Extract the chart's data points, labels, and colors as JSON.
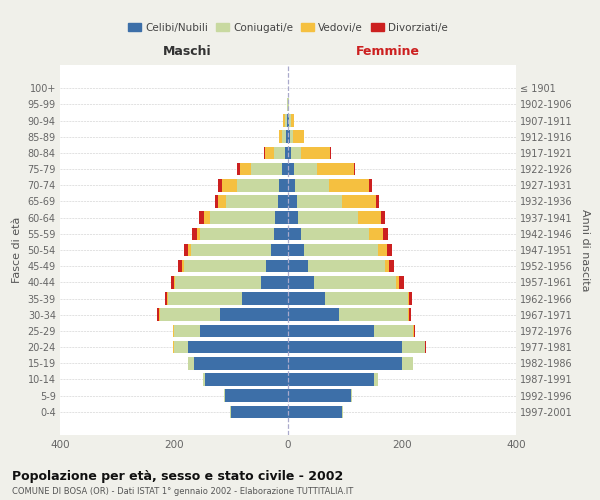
{
  "age_groups": [
    "0-4",
    "5-9",
    "10-14",
    "15-19",
    "20-24",
    "25-29",
    "30-34",
    "35-39",
    "40-44",
    "45-49",
    "50-54",
    "55-59",
    "60-64",
    "65-69",
    "70-74",
    "75-79",
    "80-84",
    "85-89",
    "90-94",
    "95-99",
    "100+"
  ],
  "birth_years": [
    "1997-2001",
    "1992-1996",
    "1987-1991",
    "1982-1986",
    "1977-1981",
    "1972-1976",
    "1967-1971",
    "1962-1966",
    "1957-1961",
    "1952-1956",
    "1947-1951",
    "1942-1946",
    "1937-1941",
    "1932-1936",
    "1927-1931",
    "1922-1926",
    "1917-1921",
    "1912-1916",
    "1907-1911",
    "1902-1906",
    "≤ 1901"
  ],
  "males": {
    "celibi": [
      100,
      110,
      145,
      165,
      175,
      155,
      120,
      80,
      48,
      38,
      30,
      25,
      22,
      18,
      15,
      10,
      5,
      3,
      2,
      0,
      0
    ],
    "coniugati": [
      2,
      2,
      5,
      10,
      25,
      45,
      105,
      130,
      150,
      145,
      140,
      130,
      115,
      90,
      75,
      55,
      20,
      8,
      4,
      1,
      0
    ],
    "vedovi": [
      0,
      0,
      0,
      0,
      1,
      1,
      2,
      2,
      2,
      3,
      5,
      5,
      10,
      15,
      25,
      20,
      15,
      5,
      2,
      0,
      0
    ],
    "divorziati": [
      0,
      0,
      0,
      0,
      1,
      1,
      2,
      3,
      5,
      7,
      8,
      8,
      10,
      5,
      8,
      5,
      2,
      0,
      0,
      0,
      0
    ]
  },
  "females": {
    "nubili": [
      95,
      110,
      150,
      200,
      200,
      150,
      90,
      65,
      45,
      35,
      28,
      22,
      18,
      15,
      12,
      10,
      5,
      3,
      2,
      0,
      0
    ],
    "coniugate": [
      2,
      3,
      8,
      20,
      40,
      70,
      120,
      145,
      145,
      135,
      130,
      120,
      105,
      80,
      60,
      40,
      18,
      5,
      3,
      1,
      0
    ],
    "vedove": [
      0,
      0,
      0,
      0,
      1,
      1,
      2,
      3,
      5,
      8,
      15,
      25,
      40,
      60,
      70,
      65,
      50,
      20,
      5,
      1,
      0
    ],
    "divorziate": [
      0,
      0,
      0,
      0,
      1,
      2,
      4,
      5,
      8,
      8,
      10,
      8,
      8,
      5,
      5,
      3,
      2,
      0,
      0,
      0,
      0
    ]
  },
  "colors": {
    "celibi_nubili": "#3d6fa8",
    "coniugati": "#c8d9a0",
    "vedovi": "#f5c040",
    "divorziati": "#cc2020"
  },
  "title": "Popolazione per età, sesso e stato civile - 2002",
  "subtitle": "COMUNE DI BOSA (OR) - Dati ISTAT 1° gennaio 2002 - Elaborazione TUTTITALIA.IT",
  "xlabel_left": "Maschi",
  "xlabel_right": "Femmine",
  "ylabel_left": "Fasce di età",
  "ylabel_right": "Anni di nascita",
  "xlim": 400,
  "bg_color": "#f0f0ea",
  "plot_bg": "#ffffff",
  "legend_labels": [
    "Celibi/Nubili",
    "Coniugati/e",
    "Vedovi/e",
    "Divorziati/e"
  ]
}
